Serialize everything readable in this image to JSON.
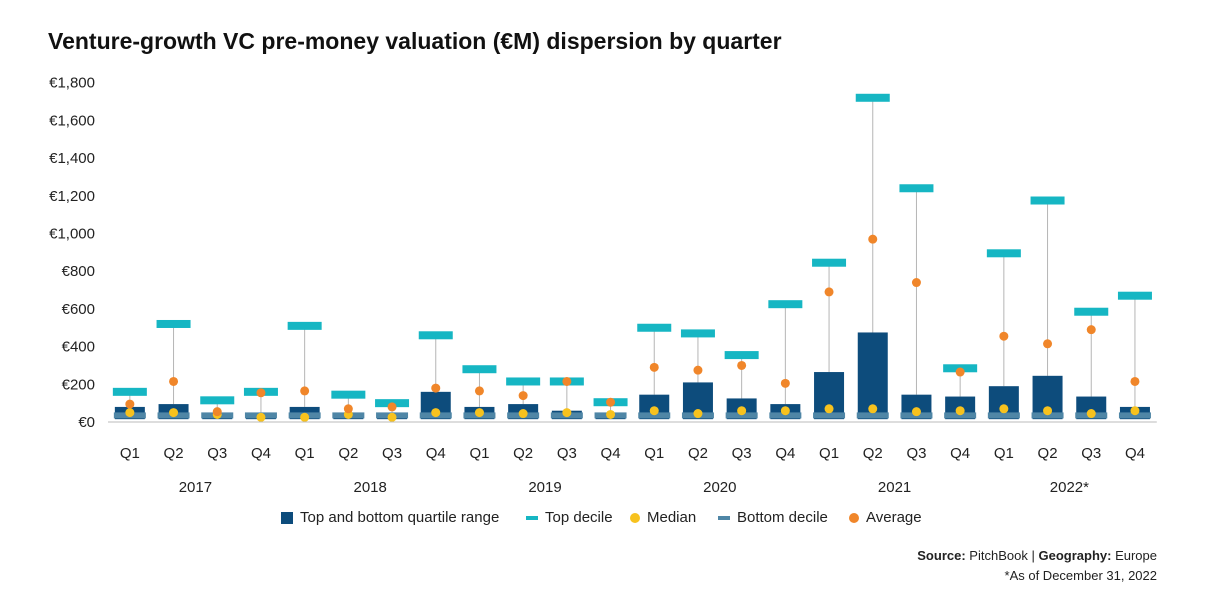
{
  "chart_data": {
    "type": "box",
    "title": "Venture-growth VC pre-money valuation (€M) dispersion by quarter",
    "y_ticks": [
      "€0",
      "€200",
      "€400",
      "€600",
      "€800",
      "€1,000",
      "€1,200",
      "€1,400",
      "€1,600",
      "€1,800"
    ],
    "ylim": [
      0,
      1800
    ],
    "quarters": [
      "Q1",
      "Q2",
      "Q3",
      "Q4",
      "Q1",
      "Q2",
      "Q3",
      "Q4",
      "Q1",
      "Q2",
      "Q3",
      "Q4",
      "Q1",
      "Q2",
      "Q3",
      "Q4",
      "Q1",
      "Q2",
      "Q3",
      "Q4",
      "Q1",
      "Q2",
      "Q3",
      "Q4"
    ],
    "years": [
      "2017",
      "2018",
      "2019",
      "2020",
      "2021",
      "2022*"
    ],
    "series": [
      {
        "name": "Top and bottom quartile range",
        "color": "#0d4c7c",
        "low": [
          15,
          15,
          15,
          15,
          15,
          15,
          15,
          15,
          15,
          15,
          15,
          15,
          15,
          15,
          15,
          15,
          15,
          15,
          15,
          15,
          15,
          15,
          15,
          15
        ],
        "high": [
          80,
          95,
          45,
          45,
          80,
          45,
          40,
          160,
          80,
          95,
          60,
          45,
          145,
          210,
          125,
          95,
          265,
          475,
          145,
          135,
          190,
          245,
          135,
          80
        ]
      },
      {
        "name": "Top decile",
        "color": "#16b6c3",
        "values": [
          160,
          520,
          115,
          160,
          510,
          145,
          100,
          460,
          280,
          215,
          215,
          105,
          500,
          470,
          355,
          625,
          845,
          1720,
          1240,
          285,
          895,
          1175,
          585,
          670
        ]
      },
      {
        "name": "Median",
        "color": "#f7c21e",
        "values": [
          50,
          50,
          40,
          25,
          25,
          40,
          25,
          50,
          50,
          45,
          50,
          40,
          60,
          45,
          60,
          60,
          70,
          70,
          55,
          60,
          70,
          60,
          45,
          60
        ]
      },
      {
        "name": "Bottom decile",
        "color": "#4f86a6",
        "values": [
          35,
          35,
          35,
          35,
          35,
          35,
          35,
          35,
          35,
          35,
          35,
          35,
          35,
          35,
          35,
          35,
          35,
          35,
          35,
          35,
          35,
          35,
          35,
          35
        ]
      },
      {
        "name": "Average",
        "color": "#f0862a",
        "values": [
          95,
          215,
          55,
          155,
          165,
          70,
          80,
          180,
          165,
          140,
          215,
          105,
          290,
          275,
          300,
          205,
          690,
          970,
          740,
          265,
          455,
          415,
          490,
          215
        ]
      }
    ]
  },
  "footer": {
    "source_label": "Source:",
    "source_value": "PitchBook",
    "separator": "|",
    "geo_label": "Geography:",
    "geo_value": "Europe",
    "note": "*As of December 31, 2022"
  }
}
